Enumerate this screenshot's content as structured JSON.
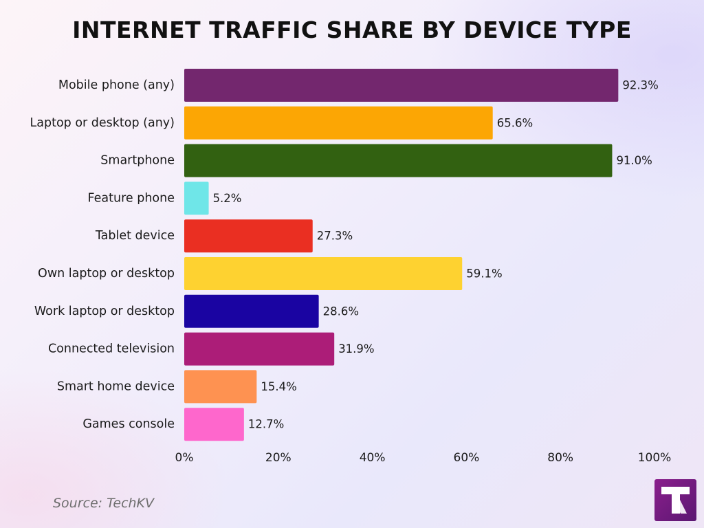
{
  "title": "INTERNET TRAFFIC SHARE BY DEVICE TYPE",
  "source": "Source: TechKV",
  "logo_icon": "techkv-logo-icon",
  "chart_data": {
    "type": "bar",
    "orientation": "horizontal",
    "title": "INTERNET TRAFFIC SHARE BY DEVICE TYPE",
    "xlabel": "",
    "ylabel": "",
    "xlim": [
      0,
      100
    ],
    "xticks": [
      0,
      20,
      40,
      60,
      80,
      100
    ],
    "xtick_labels": [
      "0%",
      "20%",
      "40%",
      "60%",
      "80%",
      "100%"
    ],
    "grid": false,
    "categories": [
      "Mobile phone (any)",
      "Laptop or desktop (any)",
      "Smartphone",
      "Feature phone",
      "Tablet device",
      "Own laptop or desktop",
      "Work laptop or desktop",
      "Connected television",
      "Smart home device",
      "Games console"
    ],
    "values": [
      92.3,
      65.6,
      91.0,
      5.2,
      27.3,
      59.1,
      28.6,
      31.9,
      15.4,
      12.7
    ],
    "value_labels": [
      "92.3%",
      "65.6%",
      "91.0%",
      "5.2%",
      "27.3%",
      "59.1%",
      "28.6%",
      "31.9%",
      "15.4%",
      "12.7%"
    ],
    "colors": [
      "#73276e",
      "#fca604",
      "#326111",
      "#6fe6e8",
      "#ea2f22",
      "#fed230",
      "#1a04a2",
      "#ac1d78",
      "#fe9251",
      "#fe67cc"
    ]
  }
}
